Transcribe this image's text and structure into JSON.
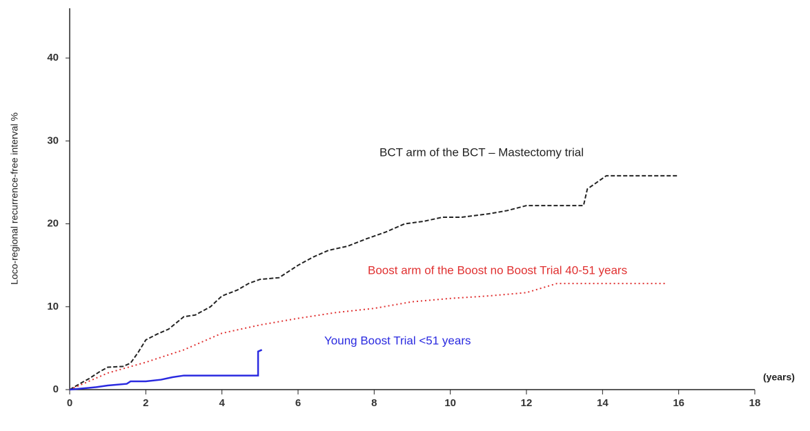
{
  "chart_data": {
    "type": "line",
    "y_label": "Loco-regional recurrence-free interval %",
    "x_label": "(years)",
    "xlim": [
      0,
      18
    ],
    "xticks": [
      0,
      2,
      4,
      6,
      8,
      10,
      12,
      14,
      16,
      18
    ],
    "ylim": [
      0,
      46
    ],
    "yticks": [
      0,
      10,
      20,
      30,
      40
    ],
    "series": [
      {
        "name": "BCT arm of the BCT – Mastectomy trial",
        "color": "#222222",
        "dash": "6,3",
        "x": [
          0,
          0.3,
          0.5,
          0.8,
          1.0,
          1.4,
          1.6,
          1.8,
          2.0,
          2.3,
          2.6,
          3.0,
          3.3,
          3.7,
          4.0,
          4.4,
          4.7,
          5.0,
          5.5,
          6.0,
          6.4,
          6.8,
          7.3,
          7.8,
          8.3,
          8.8,
          9.3,
          9.8,
          10.3,
          11.0,
          11.5,
          12.0,
          13.5,
          13.6,
          14.1,
          16.0
        ],
        "values": [
          0,
          0.8,
          1.3,
          2.2,
          2.7,
          2.8,
          3.2,
          4.5,
          6.0,
          6.7,
          7.3,
          8.8,
          9.0,
          10.0,
          11.3,
          12.0,
          12.8,
          13.3,
          13.5,
          15.0,
          16.0,
          16.8,
          17.3,
          18.2,
          19.0,
          20.0,
          20.3,
          20.8,
          20.8,
          21.2,
          21.6,
          22.2,
          22.2,
          24.2,
          25.8,
          25.8
        ]
      },
      {
        "name": "Boost arm of the Boost no Boost Trial  40-51 years",
        "color": "#e03030",
        "dash": "2,4",
        "x": [
          0,
          1,
          2,
          3,
          4,
          5,
          6,
          7,
          8,
          9,
          10,
          11,
          12,
          12.8,
          15.7
        ],
        "values": [
          0,
          2.0,
          3.3,
          4.8,
          6.8,
          7.8,
          8.6,
          9.3,
          9.8,
          10.6,
          11.0,
          11.3,
          11.7,
          12.8,
          12.8
        ]
      },
      {
        "name": "Young Boost Trial <51 years",
        "color": "#2a2ae0",
        "dash": "none",
        "x": [
          0,
          0.7,
          1.0,
          1.5,
          1.6,
          2.0,
          2.4,
          2.7,
          3.0,
          4.0,
          4.95,
          4.95,
          5.05
        ],
        "values": [
          0,
          0.3,
          0.5,
          0.7,
          1.0,
          1.0,
          1.2,
          1.5,
          1.7,
          1.7,
          1.7,
          4.6,
          4.8
        ]
      }
    ]
  }
}
